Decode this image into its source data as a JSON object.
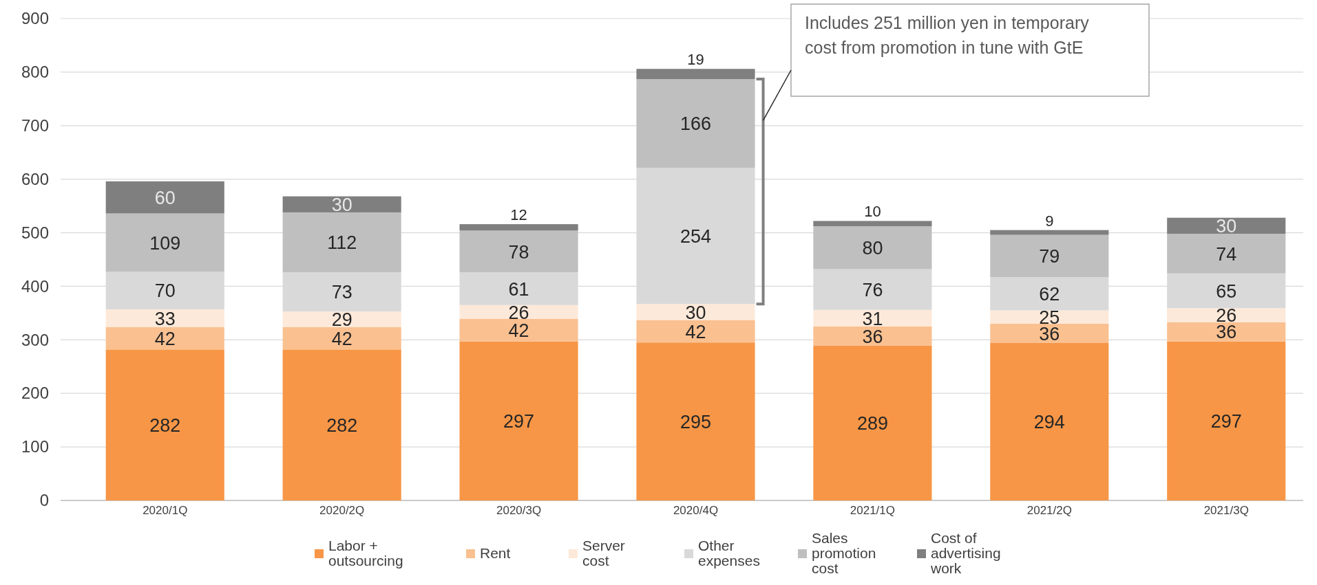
{
  "chart_data": {
    "type": "bar",
    "stacked": true,
    "categories": [
      "2020/1Q",
      "2020/2Q",
      "2020/3Q",
      "2020/4Q",
      "2021/1Q",
      "2021/2Q",
      "2021/3Q"
    ],
    "series": [
      {
        "name": "Labor + outsourcing",
        "color": "#f79646",
        "values": [
          282,
          282,
          297,
          295,
          289,
          294,
          297
        ]
      },
      {
        "name": "Rent",
        "color": "#fac090",
        "values": [
          42,
          42,
          42,
          42,
          36,
          36,
          36
        ]
      },
      {
        "name": "Server cost",
        "color": "#fde9d9",
        "values": [
          33,
          29,
          26,
          30,
          31,
          25,
          26
        ]
      },
      {
        "name": "Other expenses",
        "color": "#d9d9d9",
        "values": [
          70,
          73,
          61,
          254,
          76,
          62,
          65
        ]
      },
      {
        "name": "Sales promotion cost",
        "color": "#bfbfbf",
        "values": [
          109,
          112,
          78,
          166,
          80,
          79,
          74
        ]
      },
      {
        "name": "Cost of advertising work",
        "color": "#7f7f7f",
        "values": [
          60,
          30,
          12,
          19,
          10,
          9,
          30
        ]
      }
    ],
    "ylim": [
      0,
      900
    ],
    "yticks": [
      0,
      100,
      200,
      300,
      400,
      500,
      600,
      700,
      800,
      900
    ],
    "grid": "y",
    "legend": "bottom",
    "data_labels": true,
    "annotations": [
      "Includes 251 million yen in temporary cost from promotion in tune with GtE"
    ]
  }
}
